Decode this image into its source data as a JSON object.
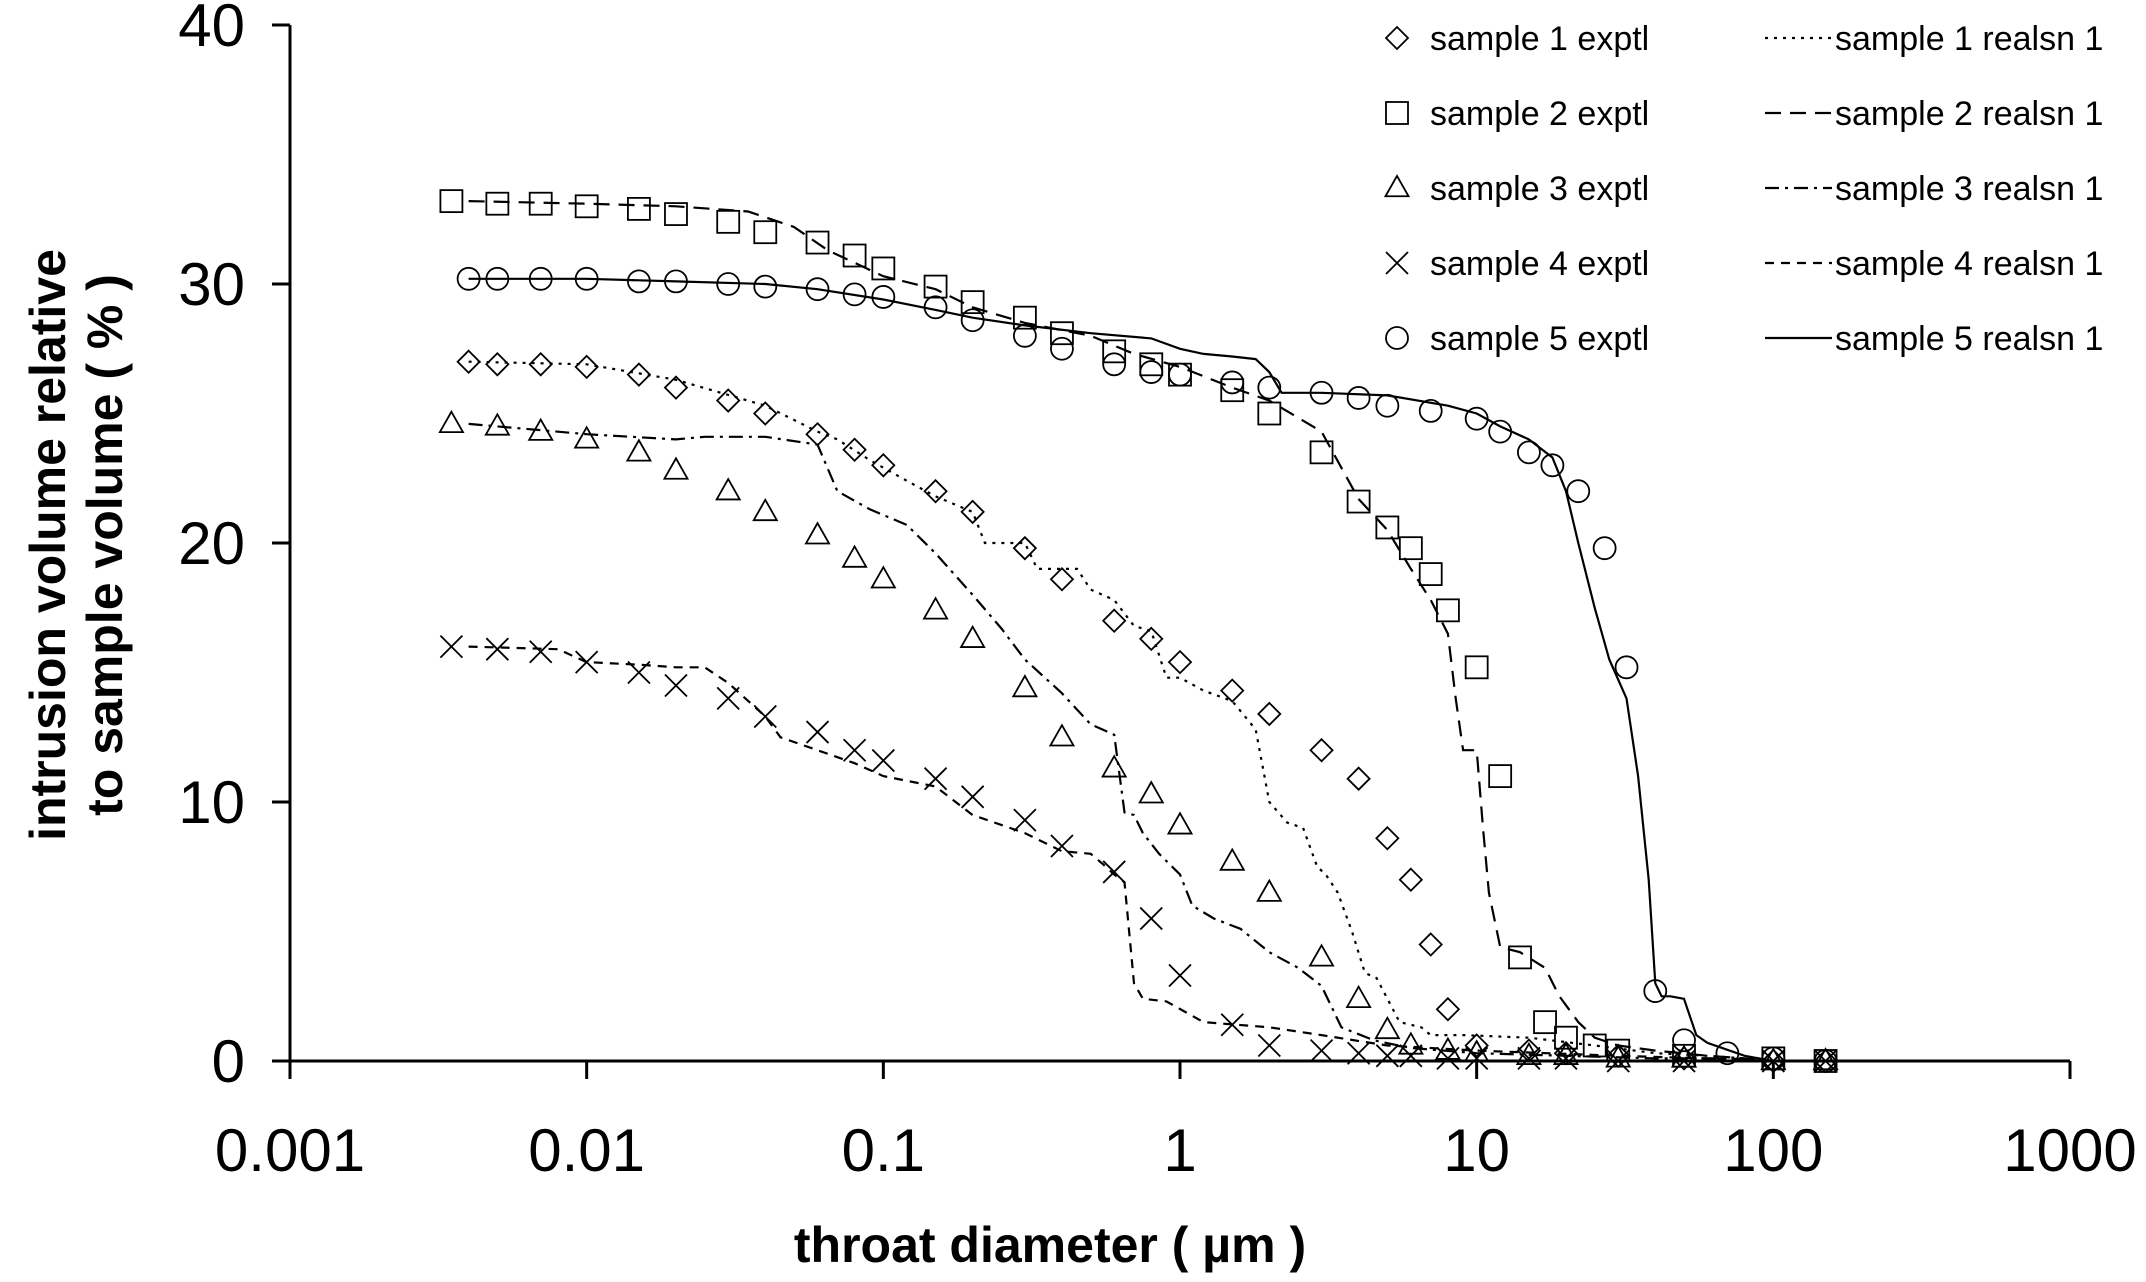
{
  "chart_data": {
    "type": "scatter",
    "title": "",
    "xlabel": "throat diameter ( µm )",
    "ylabel_lines": [
      "intrusion volume relative",
      "to sample volume ( % )"
    ],
    "x_scale": "log",
    "xlim": [
      0.001,
      1000
    ],
    "ylim": [
      0,
      40
    ],
    "x_ticks": [
      0.001,
      0.01,
      0.1,
      1,
      10,
      100,
      1000
    ],
    "x_tick_labels": [
      "0.001",
      "0.01",
      "0.1",
      "1",
      "10",
      "100",
      "1000"
    ],
    "y_ticks": [
      0,
      10,
      20,
      30,
      40
    ],
    "y_tick_labels": [
      "0",
      "10",
      "20",
      "30",
      "40"
    ],
    "grid": false,
    "legend": {
      "placement": "top-right",
      "marker_entries": [
        {
          "label": "sample 1 exptl",
          "marker": "diamond"
        },
        {
          "label": "sample 2 exptl",
          "marker": "square"
        },
        {
          "label": "sample 3 exptl",
          "marker": "triangle"
        },
        {
          "label": "sample 4 exptl",
          "marker": "cross"
        },
        {
          "label": "sample 5 exptl",
          "marker": "circle"
        }
      ],
      "line_entries": [
        {
          "label": "sample 1 realsn 1",
          "dash": "dotted"
        },
        {
          "label": "sample 2 realsn 1",
          "dash": "dashed"
        },
        {
          "label": "sample 3 realsn 1",
          "dash": "dashdot"
        },
        {
          "label": "sample 4 realsn 1",
          "dash": "shortdash"
        },
        {
          "label": "sample 5 realsn 1",
          "dash": "solid"
        }
      ]
    },
    "series": [
      {
        "name": "sample 1 exptl",
        "kind": "scatter",
        "marker": "diamond",
        "x": [
          0.004,
          0.005,
          0.007,
          0.01,
          0.015,
          0.02,
          0.03,
          0.04,
          0.06,
          0.08,
          0.1,
          0.15,
          0.2,
          0.3,
          0.4,
          0.6,
          0.8,
          1.0,
          1.5,
          2.0,
          3.0,
          4.0,
          5.0,
          6.0,
          7.0,
          8.0,
          10,
          15,
          20,
          30,
          50,
          100,
          150
        ],
        "y": [
          27.0,
          26.9,
          26.9,
          26.8,
          26.5,
          26.0,
          25.5,
          25.0,
          24.2,
          23.6,
          23.0,
          22.0,
          21.2,
          19.8,
          18.6,
          17.0,
          16.3,
          15.4,
          14.3,
          13.4,
          12.0,
          10.9,
          8.6,
          7.0,
          4.5,
          2.0,
          0.6,
          0.4,
          0.3,
          0.2,
          0.1,
          0.0,
          0.0
        ]
      },
      {
        "name": "sample 2 exptl",
        "kind": "scatter",
        "marker": "square",
        "x": [
          0.0035,
          0.005,
          0.007,
          0.01,
          0.015,
          0.02,
          0.03,
          0.04,
          0.06,
          0.08,
          0.1,
          0.15,
          0.2,
          0.3,
          0.4,
          0.6,
          0.8,
          1.0,
          1.5,
          2.0,
          3.0,
          4.0,
          5.0,
          6.0,
          7.0,
          8.0,
          10,
          12,
          14,
          17,
          20,
          25,
          30,
          50,
          100,
          150
        ],
        "y": [
          33.2,
          33.1,
          33.1,
          33.0,
          32.9,
          32.7,
          32.4,
          32.0,
          31.6,
          31.1,
          30.6,
          29.9,
          29.3,
          28.7,
          28.1,
          27.4,
          26.9,
          26.5,
          25.9,
          25.0,
          23.5,
          21.6,
          20.6,
          19.8,
          18.8,
          17.4,
          15.2,
          11.0,
          4.0,
          1.5,
          0.9,
          0.6,
          0.4,
          0.2,
          0.1,
          0.0
        ]
      },
      {
        "name": "sample 3 exptl",
        "kind": "scatter",
        "marker": "triangle",
        "x": [
          0.0035,
          0.005,
          0.007,
          0.01,
          0.015,
          0.02,
          0.03,
          0.04,
          0.06,
          0.08,
          0.1,
          0.15,
          0.2,
          0.3,
          0.4,
          0.6,
          0.8,
          1.0,
          1.5,
          2.0,
          3.0,
          4.0,
          5.0,
          6.0,
          8.0,
          10,
          15,
          20,
          30,
          50,
          100,
          150
        ],
        "y": [
          24.6,
          24.5,
          24.3,
          24.0,
          23.5,
          22.8,
          22.0,
          21.2,
          20.3,
          19.4,
          18.6,
          17.4,
          16.3,
          14.4,
          12.5,
          11.3,
          10.3,
          9.1,
          7.7,
          6.5,
          4.0,
          2.4,
          1.2,
          0.6,
          0.4,
          0.3,
          0.2,
          0.2,
          0.1,
          0.1,
          0.0,
          0.0
        ]
      },
      {
        "name": "sample 4 exptl",
        "kind": "scatter",
        "marker": "cross",
        "x": [
          0.0035,
          0.005,
          0.007,
          0.01,
          0.015,
          0.02,
          0.03,
          0.04,
          0.06,
          0.08,
          0.1,
          0.15,
          0.2,
          0.3,
          0.4,
          0.6,
          0.8,
          1.0,
          1.5,
          2.0,
          3.0,
          4.0,
          5.0,
          6.0,
          8.0,
          10,
          15,
          20,
          30,
          50,
          100,
          150
        ],
        "y": [
          16.0,
          15.9,
          15.8,
          15.4,
          15.0,
          14.5,
          14.0,
          13.3,
          12.7,
          12.0,
          11.6,
          10.9,
          10.2,
          9.3,
          8.3,
          7.3,
          5.5,
          3.3,
          1.4,
          0.6,
          0.4,
          0.3,
          0.2,
          0.2,
          0.1,
          0.1,
          0.1,
          0.1,
          0.0,
          0.0,
          0.0,
          0.0
        ]
      },
      {
        "name": "sample 5 exptl",
        "kind": "scatter",
        "marker": "circle",
        "x": [
          0.004,
          0.005,
          0.007,
          0.01,
          0.015,
          0.02,
          0.03,
          0.04,
          0.06,
          0.08,
          0.1,
          0.15,
          0.2,
          0.3,
          0.4,
          0.6,
          0.8,
          1.0,
          1.5,
          2.0,
          3.0,
          4.0,
          5.0,
          7.0,
          10,
          12,
          15,
          18,
          22,
          27,
          32,
          40,
          50,
          70,
          100,
          150
        ],
        "y": [
          30.2,
          30.2,
          30.2,
          30.2,
          30.1,
          30.1,
          30.0,
          29.9,
          29.8,
          29.6,
          29.5,
          29.1,
          28.6,
          28.0,
          27.5,
          26.9,
          26.6,
          26.5,
          26.2,
          26.0,
          25.8,
          25.6,
          25.3,
          25.1,
          24.8,
          24.3,
          23.5,
          23.0,
          22.0,
          19.8,
          15.2,
          2.7,
          0.8,
          0.3,
          0.1,
          0.0
        ]
      },
      {
        "name": "sample 1 realsn 1",
        "kind": "line",
        "dash": "dotted",
        "x": [
          0.004,
          0.01,
          0.02,
          0.04,
          0.06,
          0.07,
          0.09,
          0.12,
          0.15,
          0.2,
          0.22,
          0.3,
          0.33,
          0.45,
          0.5,
          0.6,
          0.7,
          0.8,
          0.9,
          1.0,
          1.2,
          1.5,
          1.8,
          2.0,
          2.3,
          2.6,
          2.9,
          3.1,
          3.4,
          3.8,
          4.2,
          4.6,
          5.5,
          6.5,
          7.0,
          9.0,
          15,
          25,
          40,
          60,
          80,
          100
        ],
        "y": [
          27.0,
          26.9,
          26.3,
          25.3,
          24.3,
          24.0,
          23.2,
          22.4,
          21.8,
          21.2,
          20.0,
          20.0,
          19.0,
          19.0,
          18.2,
          17.8,
          16.8,
          16.6,
          14.8,
          14.8,
          14.3,
          13.9,
          12.8,
          10.0,
          9.2,
          9.0,
          7.5,
          7.2,
          6.5,
          5.0,
          3.4,
          3.2,
          1.5,
          1.3,
          1.0,
          1.0,
          0.9,
          0.6,
          0.3,
          0.2,
          0.1,
          0.0
        ]
      },
      {
        "name": "sample 2 realsn 1",
        "kind": "line",
        "dash": "dashed",
        "x": [
          0.004,
          0.01,
          0.02,
          0.035,
          0.05,
          0.065,
          0.1,
          0.15,
          0.2,
          0.3,
          0.5,
          0.7,
          1.0,
          1.5,
          2.0,
          3.0,
          4.0,
          5.0,
          6.0,
          7.0,
          8.0,
          8.5,
          9.0,
          10.0,
          10.5,
          11.0,
          12.0,
          14.0,
          17.0,
          19.0,
          22.0,
          25.0,
          30.0,
          40.0,
          60.0,
          80.0,
          100
        ],
        "y": [
          33.2,
          33.1,
          33.0,
          32.8,
          32.2,
          31.3,
          30.3,
          29.8,
          29.1,
          28.5,
          28.0,
          27.3,
          26.8,
          26.0,
          25.5,
          24.3,
          21.7,
          20.5,
          19.0,
          17.8,
          16.5,
          14.0,
          12.0,
          12.0,
          9.0,
          6.5,
          4.4,
          4.2,
          3.6,
          2.5,
          1.5,
          0.9,
          0.6,
          0.4,
          0.2,
          0.1,
          0.0
        ]
      },
      {
        "name": "sample 3 realsn 1",
        "kind": "line",
        "dash": "dashdot",
        "x": [
          0.004,
          0.01,
          0.02,
          0.025,
          0.04,
          0.06,
          0.07,
          0.09,
          0.12,
          0.15,
          0.2,
          0.25,
          0.3,
          0.4,
          0.5,
          0.6,
          0.65,
          0.7,
          0.75,
          0.85,
          1.0,
          1.1,
          1.3,
          1.6,
          2.0,
          2.5,
          3.0,
          3.5,
          4.5,
          6.0,
          10,
          20,
          40,
          70,
          100
        ],
        "y": [
          24.6,
          24.2,
          24.0,
          24.1,
          24.1,
          23.8,
          22.0,
          21.3,
          20.7,
          19.6,
          18.0,
          16.7,
          15.5,
          14.2,
          13.0,
          12.6,
          9.6,
          9.5,
          8.8,
          8.0,
          7.2,
          6.0,
          5.5,
          5.1,
          4.2,
          3.6,
          2.9,
          1.3,
          0.8,
          0.5,
          0.3,
          0.2,
          0.1,
          0.1,
          0.0
        ]
      },
      {
        "name": "sample 4 realsn 1",
        "kind": "line",
        "dash": "shortdash",
        "x": [
          0.004,
          0.008,
          0.01,
          0.015,
          0.02,
          0.025,
          0.03,
          0.04,
          0.045,
          0.06,
          0.08,
          0.1,
          0.15,
          0.2,
          0.3,
          0.4,
          0.5,
          0.55,
          0.6,
          0.65,
          0.7,
          0.75,
          0.9,
          1.2,
          2.0,
          3.0,
          5.0,
          10,
          30,
          60,
          100
        ],
        "y": [
          16.0,
          15.9,
          15.4,
          15.3,
          15.2,
          15.2,
          14.6,
          13.3,
          12.5,
          12.0,
          11.5,
          11.0,
          10.6,
          9.5,
          8.8,
          8.1,
          8.0,
          7.6,
          7.2,
          6.9,
          3.0,
          2.4,
          2.3,
          1.5,
          1.3,
          1.0,
          0.6,
          0.4,
          0.2,
          0.1,
          0.0
        ]
      },
      {
        "name": "sample 5 realsn 1",
        "kind": "line",
        "dash": "solid",
        "x": [
          0.004,
          0.01,
          0.02,
          0.04,
          0.06,
          0.1,
          0.15,
          0.2,
          0.3,
          0.5,
          0.8,
          1.0,
          1.2,
          1.5,
          1.8,
          2.0,
          2.2,
          3.0,
          5.0,
          8.0,
          10,
          12,
          15,
          18,
          20,
          22,
          25,
          28,
          32,
          35,
          38,
          40,
          42,
          45,
          50,
          55,
          60,
          80,
          100
        ],
        "y": [
          30.2,
          30.2,
          30.1,
          30.0,
          29.8,
          29.4,
          29.0,
          28.7,
          28.4,
          28.1,
          27.9,
          27.5,
          27.3,
          27.2,
          27.1,
          26.6,
          25.8,
          25.8,
          25.7,
          25.3,
          25.0,
          24.5,
          24.0,
          23.3,
          22.0,
          20.0,
          17.5,
          15.5,
          14.0,
          11.0,
          7.0,
          3.0,
          2.5,
          2.5,
          2.4,
          1.0,
          0.7,
          0.2,
          0.0
        ]
      }
    ]
  }
}
